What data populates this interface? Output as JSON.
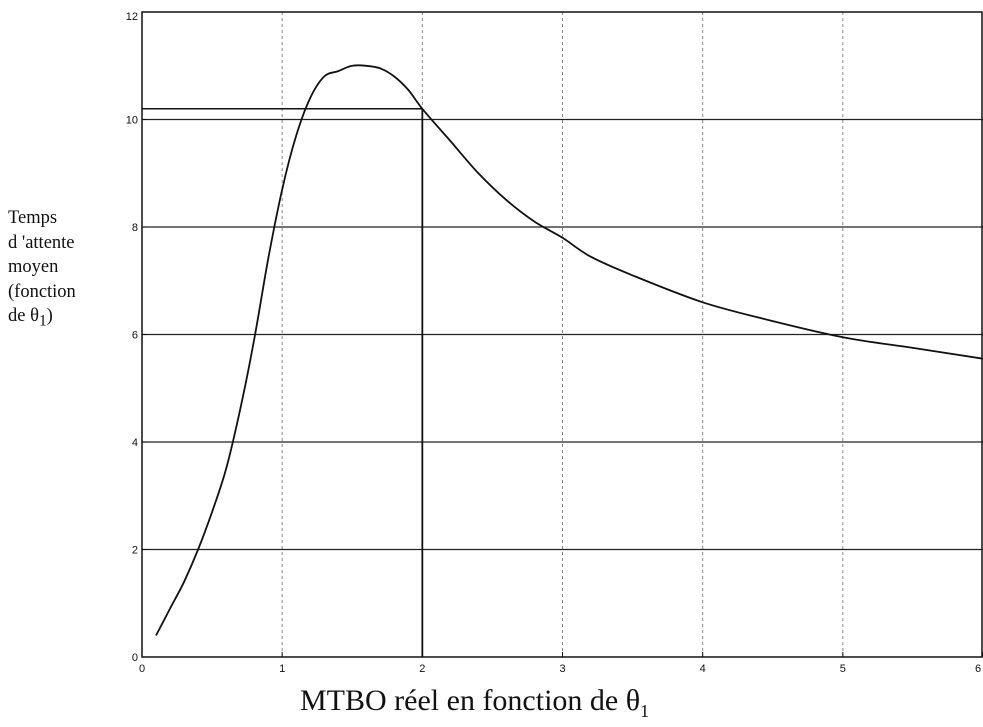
{
  "chart_data": {
    "type": "line",
    "xlabel": "MTBO réel en fonction de θ",
    "xlabel_subscript": "1",
    "ylabel_lines": [
      "Temps",
      "d 'attente",
      "moyen",
      "(fonction",
      "de θ",
      ")"
    ],
    "ylabel_subscript": "1",
    "xlim": [
      0,
      6
    ],
    "ylim": [
      0,
      12
    ],
    "xticks": [
      "0",
      "1",
      "2",
      "3",
      "4",
      "5",
      "6"
    ],
    "yticks": [
      "0",
      "2",
      "4",
      "6",
      "8",
      "10",
      "12"
    ],
    "grid": true,
    "series": [
      {
        "x": [
          0.1,
          0.2,
          0.3,
          0.4,
          0.5,
          0.6,
          0.7,
          0.8,
          0.9,
          1.0,
          1.1,
          1.2,
          1.3,
          1.4,
          1.5,
          1.6,
          1.7,
          1.8,
          1.9,
          2.0,
          2.2,
          2.4,
          2.6,
          2.8,
          3.0,
          3.2,
          3.5,
          4.0,
          4.5,
          5.0,
          5.5,
          6.0
        ],
        "y": [
          0.4,
          0.9,
          1.4,
          2.0,
          2.7,
          3.5,
          4.6,
          5.9,
          7.4,
          8.7,
          9.7,
          10.4,
          10.8,
          10.9,
          11.0,
          11.0,
          10.95,
          10.8,
          10.55,
          10.2,
          9.6,
          9.0,
          8.5,
          8.1,
          7.8,
          7.45,
          7.1,
          6.6,
          6.25,
          5.95,
          5.75,
          5.55
        ]
      }
    ],
    "reference_lines": [
      {
        "type": "horizontal",
        "y": 10.2,
        "x_range": [
          0,
          2
        ]
      },
      {
        "type": "vertical",
        "x": 2,
        "y_range": [
          0,
          10.2
        ]
      }
    ]
  }
}
